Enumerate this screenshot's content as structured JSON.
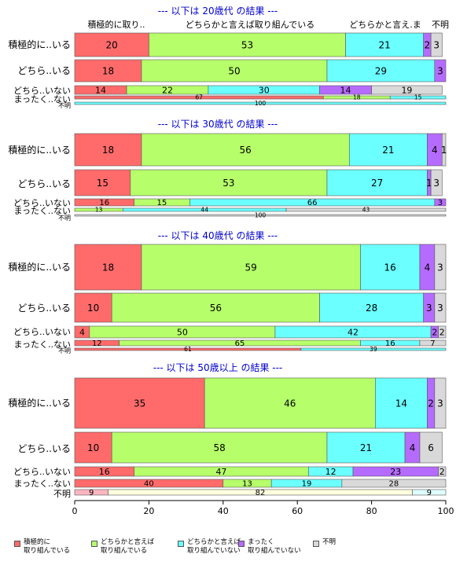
{
  "chart_data": {
    "type": "bar",
    "orientation": "horizontal",
    "stacked": true,
    "xlim": [
      0,
      100
    ],
    "x_ticks": [
      "0",
      "20",
      "40",
      "60",
      "80",
      "100"
    ],
    "header_labels": [
      "積極的に取り..",
      "どちらかと言えば取り組んでいる",
      "どちらかと言え.ま",
      "不明"
    ],
    "legend": {
      "placement": "bottom-left",
      "entries": [
        {
          "label": "積極的に\n取り組んでいる",
          "color": "#FF6B6B"
        },
        {
          "label": "どちらかと言えば\n取り組んでいる",
          "color": "#B6FF6B"
        },
        {
          "label": "どちらかと言えば\n取り組んでいない",
          "color": "#6BFFFF"
        },
        {
          "label": "まったく\n取り組んでいない",
          "color": "#B66BFF"
        },
        {
          "label": "不明",
          "color": "#D9D9D9"
        }
      ]
    },
    "panels": [
      {
        "title": "--- 以下は 20歳代 の結果 ---",
        "rows": [
          {
            "label": "積極的に..いる",
            "values": [
              20,
              53,
              21,
              2,
              3
            ],
            "colors": [
              "#FF6B6B",
              "#B6FF6B",
              "#6BFFFF",
              "#B66BFF",
              "#D9D9D9"
            ]
          },
          {
            "label": "どちら..いる",
            "values": [
              18,
              50,
              29,
              3
            ],
            "colors": [
              "#FF6B6B",
              "#B6FF6B",
              "#6BFFFF",
              "#B66BFF"
            ]
          },
          {
            "label": "どちら..いない",
            "values": [
              14,
              22,
              30,
              14,
              19
            ],
            "colors": [
              "#FF6B6B",
              "#B6FF6B",
              "#6BFFFF",
              "#B66BFF",
              "#D9D9D9"
            ]
          },
          {
            "label": "まったく..ない",
            "values": [
              67,
              18,
              15
            ],
            "colors": [
              "#FF6B6B",
              "#B6FF6B",
              "#6BFFFF"
            ]
          },
          {
            "label": "不明",
            "values": [
              100
            ],
            "colors": [
              "#6BFFFF"
            ]
          }
        ]
      },
      {
        "title": "--- 以下は 30歳代 の結果 ---",
        "rows": [
          {
            "label": "積極的に..いる",
            "values": [
              18,
              56,
              21,
              4,
              1
            ],
            "colors": [
              "#FF6B6B",
              "#B6FF6B",
              "#6BFFFF",
              "#B66BFF",
              "#D9D9D9"
            ]
          },
          {
            "label": "どちら..いる",
            "values": [
              15,
              53,
              27,
              1,
              3
            ],
            "colors": [
              "#FF6B6B",
              "#B6FF6B",
              "#6BFFFF",
              "#B66BFF",
              "#D9D9D9"
            ]
          },
          {
            "label": "どちら..いない",
            "values": [
              16,
              15,
              66,
              3
            ],
            "colors": [
              "#FF6B6B",
              "#B6FF6B",
              "#6BFFFF",
              "#B66BFF"
            ]
          },
          {
            "label": "まったく..ない",
            "values": [
              13,
              44,
              43
            ],
            "colors": [
              "#B6FF6B",
              "#6BFFFF",
              "#D9D9D9"
            ]
          },
          {
            "label": "不明",
            "values": [
              100
            ],
            "colors": [
              "#D9D9D9"
            ]
          }
        ]
      },
      {
        "title": "--- 以下は 40歳代 の結果 ---",
        "rows": [
          {
            "label": "積極的に..いる",
            "values": [
              18,
              59,
              16,
              4,
              3
            ],
            "colors": [
              "#FF6B6B",
              "#B6FF6B",
              "#6BFFFF",
              "#B66BFF",
              "#D9D9D9"
            ]
          },
          {
            "label": "どちら..いる",
            "values": [
              10,
              56,
              28,
              3,
              3
            ],
            "colors": [
              "#FF6B6B",
              "#B6FF6B",
              "#6BFFFF",
              "#B66BFF",
              "#D9D9D9"
            ]
          },
          {
            "label": "どちら..いない",
            "values": [
              4,
              50,
              42,
              2,
              2
            ],
            "colors": [
              "#FF6B6B",
              "#B6FF6B",
              "#6BFFFF",
              "#B66BFF",
              "#D9D9D9"
            ]
          },
          {
            "label": "まったく..ない",
            "values": [
              12,
              65,
              16,
              7
            ],
            "colors": [
              "#FF6B6B",
              "#B6FF6B",
              "#6BFFFF",
              "#D9D9D9"
            ]
          },
          {
            "label": "不明",
            "values": [
              61,
              39
            ],
            "colors": [
              "#FF6B6B",
              "#6BFFFF"
            ]
          }
        ]
      },
      {
        "title": "--- 以下は 50歳以上 の結果 ---",
        "rows": [
          {
            "label": "積極的に..いる",
            "values": [
              35,
              46,
              14,
              2,
              3
            ],
            "colors": [
              "#FF6B6B",
              "#B6FF6B",
              "#6BFFFF",
              "#B66BFF",
              "#D9D9D9"
            ]
          },
          {
            "label": "どちら..いる",
            "values": [
              10,
              58,
              21,
              4,
              6
            ],
            "colors": [
              "#FF6B6B",
              "#B6FF6B",
              "#6BFFFF",
              "#B66BFF",
              "#D9D9D9"
            ]
          },
          {
            "label": "どちら..いない",
            "values": [
              16,
              47,
              12,
              23,
              2
            ],
            "colors": [
              "#FF6B6B",
              "#B6FF6B",
              "#6BFFFF",
              "#B66BFF",
              "#D9D9D9"
            ]
          },
          {
            "label": "まったく..ない",
            "values": [
              40,
              13,
              19,
              28
            ],
            "colors": [
              "#FF6B6B",
              "#B6FF6B",
              "#6BFFFF",
              "#D9D9D9"
            ]
          },
          {
            "label": "不明",
            "values": [
              9,
              82,
              9
            ],
            "colors": [
              "#FFB6C1",
              "#FFFFE0",
              "#E0FFFF"
            ]
          }
        ]
      }
    ]
  }
}
